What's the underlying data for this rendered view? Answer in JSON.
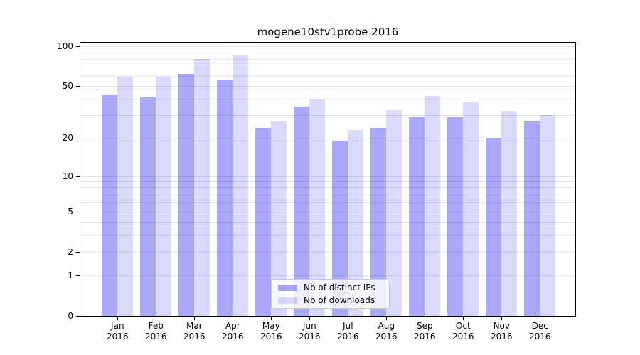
{
  "chart_data": {
    "type": "bar",
    "title": "mogene10stv1probe 2016",
    "categories": [
      "Jan 2016",
      "Feb 2016",
      "Mar 2016",
      "Apr 2016",
      "May 2016",
      "Jun 2016",
      "Jul 2016",
      "Aug 2016",
      "Sep 2016",
      "Oct 2016",
      "Nov 2016",
      "Dec 2016"
    ],
    "series": [
      {
        "name": "Nb of distinct IPs",
        "color": "rgba(10,10,235,0.35)",
        "color_hex_on_white": "#a8a8f8",
        "values": [
          43,
          41,
          62,
          56,
          24,
          35,
          19,
          24,
          29,
          29,
          20,
          27
        ]
      },
      {
        "name": "Nb of downloads",
        "color": "rgba(10,10,235,0.15)",
        "color_hex_on_white": "#d9d9f7",
        "values": [
          59,
          59,
          80,
          86,
          27,
          40,
          23,
          33,
          42,
          38,
          32,
          30
        ]
      }
    ],
    "xlabel": "",
    "ylabel": "",
    "y_scale": "log1p",
    "ylim": [
      0,
      106
    ],
    "y_ticks": [
      0,
      1,
      2,
      5,
      10,
      20,
      50,
      100
    ],
    "y_gridlines": [
      1,
      2,
      3,
      4,
      5,
      6,
      7,
      8,
      9,
      10,
      20,
      30,
      40,
      50,
      60,
      70,
      80,
      90,
      100
    ],
    "grid": "on",
    "gridline_color": "#e4e4e4",
    "legend_position": "lower center",
    "background_color": "#ffffff",
    "spine_color": "#000000"
  }
}
